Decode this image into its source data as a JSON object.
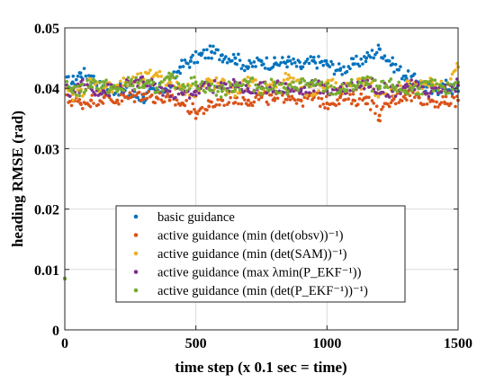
{
  "chart_data": {
    "type": "scatter",
    "title": "",
    "xlabel": "time step (x 0.1 sec = time)",
    "ylabel": "heading RMSE (rad)",
    "xlim": [
      0,
      1500
    ],
    "ylim": [
      0,
      0.05
    ],
    "xticks": [
      "0",
      "500",
      "1000",
      "1500"
    ],
    "yticks": [
      "0",
      "0.01",
      "0.02",
      "0.03",
      "0.04",
      "0.05"
    ],
    "grid": true,
    "legend_position": "bottom-center",
    "series": [
      {
        "name": "basic guidance",
        "color": "#0072BD",
        "x": [
          0,
          30,
          60,
          100,
          150,
          200,
          250,
          300,
          350,
          400,
          440,
          480,
          520,
          560,
          600,
          650,
          700,
          750,
          800,
          850,
          900,
          950,
          1000,
          1050,
          1100,
          1150,
          1200,
          1250,
          1300,
          1350,
          1400,
          1450,
          1500
        ],
        "y": [
          0.0085,
          0.041,
          0.0425,
          0.042,
          0.0395,
          0.04,
          0.039,
          0.0385,
          0.0395,
          0.0405,
          0.0435,
          0.0445,
          0.0455,
          0.046,
          0.0455,
          0.045,
          0.0435,
          0.0445,
          0.044,
          0.0445,
          0.0435,
          0.0445,
          0.044,
          0.043,
          0.044,
          0.045,
          0.0465,
          0.044,
          0.042,
          0.041,
          0.0395,
          0.0405,
          0.0395
        ]
      },
      {
        "name": "active guidance (min (det(obsv))⁻¹)",
        "color": "#D95319",
        "x": [
          0,
          30,
          60,
          100,
          150,
          200,
          250,
          300,
          350,
          400,
          450,
          500,
          550,
          600,
          650,
          700,
          750,
          800,
          850,
          900,
          950,
          1000,
          1050,
          1100,
          1150,
          1200,
          1250,
          1300,
          1350,
          1400,
          1450,
          1500
        ],
        "y": [
          0.0085,
          0.038,
          0.0375,
          0.038,
          0.0385,
          0.038,
          0.0385,
          0.039,
          0.0385,
          0.038,
          0.0375,
          0.036,
          0.037,
          0.038,
          0.0385,
          0.038,
          0.0385,
          0.038,
          0.039,
          0.038,
          0.0385,
          0.0375,
          0.0385,
          0.038,
          0.0385,
          0.0355,
          0.038,
          0.039,
          0.0385,
          0.038,
          0.0375,
          0.038
        ]
      },
      {
        "name": "active guidance (min (det(SAM))⁻¹)",
        "color": "#EDB120",
        "x": [
          0,
          30,
          60,
          100,
          150,
          200,
          250,
          300,
          350,
          400,
          450,
          500,
          550,
          600,
          650,
          700,
          750,
          800,
          850,
          900,
          950,
          1000,
          1050,
          1100,
          1150,
          1200,
          1250,
          1300,
          1350,
          1400,
          1450,
          1500
        ],
        "y": [
          0.0085,
          0.039,
          0.0395,
          0.041,
          0.04,
          0.0405,
          0.041,
          0.0415,
          0.0425,
          0.041,
          0.04,
          0.0395,
          0.041,
          0.0405,
          0.0395,
          0.041,
          0.04,
          0.0405,
          0.0415,
          0.04,
          0.0395,
          0.041,
          0.04,
          0.0405,
          0.041,
          0.039,
          0.0395,
          0.0405,
          0.04,
          0.041,
          0.04,
          0.0435
        ]
      },
      {
        "name": "active guidance (max λmin(P_EKF⁻¹))",
        "color": "#7E2F8E",
        "x": [
          0,
          30,
          60,
          100,
          150,
          200,
          250,
          300,
          350,
          400,
          450,
          500,
          550,
          600,
          650,
          700,
          750,
          800,
          850,
          900,
          950,
          1000,
          1050,
          1100,
          1150,
          1200,
          1250,
          1300,
          1350,
          1400,
          1450,
          1500
        ],
        "y": [
          0.0085,
          0.0395,
          0.0405,
          0.04,
          0.0395,
          0.04,
          0.0405,
          0.041,
          0.04,
          0.0395,
          0.039,
          0.0395,
          0.0405,
          0.04,
          0.041,
          0.0395,
          0.04,
          0.0405,
          0.04,
          0.0395,
          0.0405,
          0.0395,
          0.04,
          0.0405,
          0.041,
          0.04,
          0.0395,
          0.0405,
          0.04,
          0.0395,
          0.04,
          0.0405
        ]
      },
      {
        "name": "active guidance (min (det(P_EKF⁻¹))⁻¹)",
        "color": "#77AC30",
        "x": [
          0,
          30,
          60,
          100,
          150,
          200,
          250,
          300,
          350,
          400,
          450,
          500,
          550,
          600,
          650,
          700,
          750,
          800,
          850,
          900,
          950,
          1000,
          1050,
          1100,
          1150,
          1200,
          1250,
          1300,
          1350,
          1400,
          1450,
          1500
        ],
        "y": [
          0.0085,
          0.04,
          0.0395,
          0.041,
          0.0405,
          0.0395,
          0.041,
          0.0405,
          0.04,
          0.0415,
          0.0405,
          0.041,
          0.04,
          0.0395,
          0.0405,
          0.041,
          0.04,
          0.0405,
          0.0395,
          0.041,
          0.0405,
          0.04,
          0.0395,
          0.0405,
          0.041,
          0.04,
          0.0405,
          0.0395,
          0.04,
          0.0405,
          0.0395,
          0.041
        ]
      }
    ]
  }
}
